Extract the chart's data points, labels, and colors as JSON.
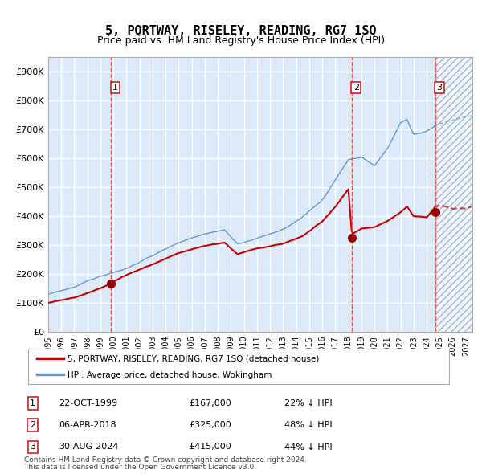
{
  "title": "5, PORTWAY, RISELEY, READING, RG7 1SQ",
  "subtitle": "Price paid vs. HM Land Registry's House Price Index (HPI)",
  "legend_label_red": "5, PORTWAY, RISELEY, READING, RG7 1SQ (detached house)",
  "legend_label_blue": "HPI: Average price, detached house, Wokingham",
  "footer_line1": "Contains HM Land Registry data © Crown copyright and database right 2024.",
  "footer_line2": "This data is licensed under the Open Government Licence v3.0.",
  "transactions": [
    {
      "num": 1,
      "date": "22-OCT-1999",
      "price": 167000,
      "hpi_pct": "22% ↓ HPI",
      "year": 1999.81
    },
    {
      "num": 2,
      "date": "06-APR-2018",
      "price": 325000,
      "hpi_pct": "48% ↓ HPI",
      "year": 2018.27
    },
    {
      "num": 3,
      "date": "30-AUG-2024",
      "price": 415000,
      "hpi_pct": "44% ↓ HPI",
      "year": 2024.66
    }
  ],
  "ylim": [
    0,
    950000
  ],
  "xlim_start": 1995.0,
  "xlim_end": 2027.5,
  "hatch_start": 2024.66,
  "yticks": [
    0,
    100000,
    200000,
    300000,
    400000,
    500000,
    600000,
    700000,
    800000,
    900000
  ],
  "ytick_labels": [
    "£0",
    "£100K",
    "£200K",
    "£300K",
    "£400K",
    "£500K",
    "£600K",
    "£700K",
    "£800K",
    "£900K"
  ],
  "bg_color": "#dce9f8",
  "hatch_color": "#c8d8e8",
  "grid_color": "#ffffff",
  "red_line_color": "#cc0000",
  "blue_line_color": "#6699cc",
  "dashed_line_color": "#ff4444",
  "marker_color": "#990000",
  "box_color": "#cc2222"
}
